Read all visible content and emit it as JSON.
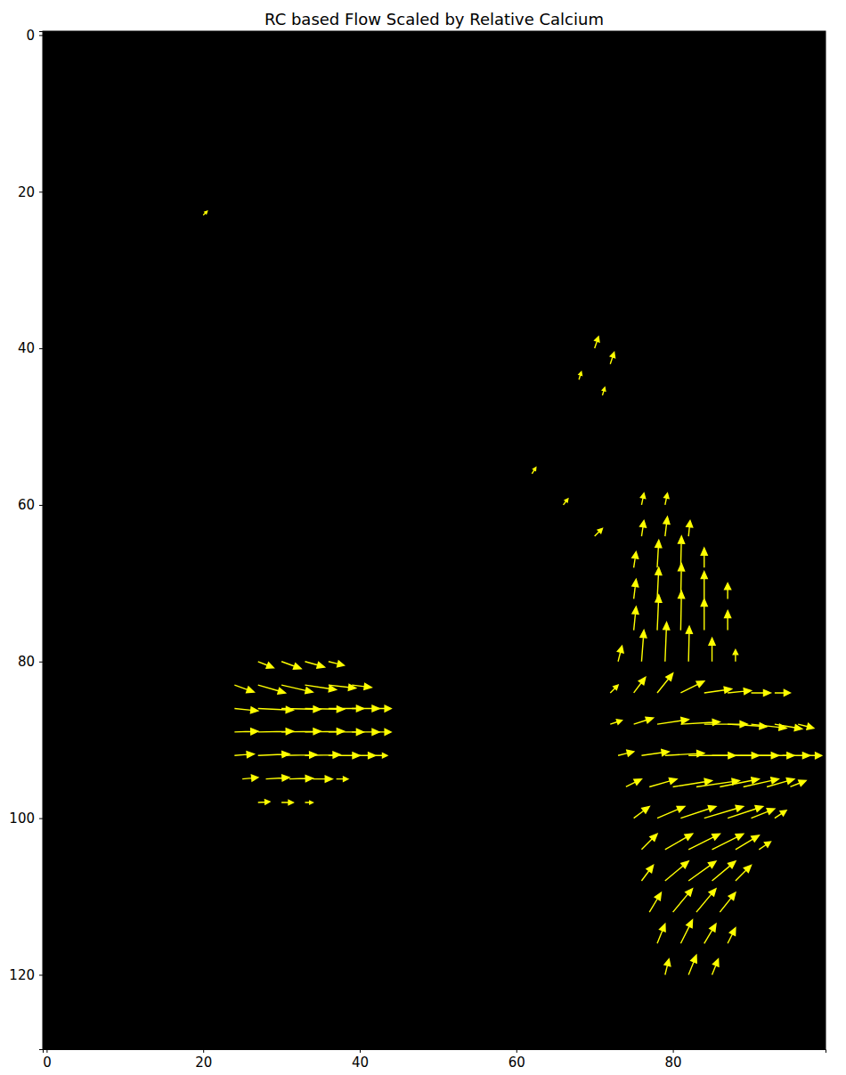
{
  "chart_data": {
    "type": "quiver",
    "title": "RC based Flow Scaled by Relative Calcium",
    "color": "#ffff00",
    "xlim": [
      -0.5,
      99.5
    ],
    "ylim": [
      129.5,
      -0.5
    ],
    "xticks": [
      0,
      20,
      40,
      60,
      80
    ],
    "yticks": [
      0,
      20,
      40,
      60,
      80,
      100,
      120
    ],
    "x": [
      27,
      30,
      33,
      36,
      24,
      27,
      30,
      33,
      36,
      39,
      24,
      27,
      30,
      33,
      36,
      39,
      42,
      24,
      27,
      30,
      33,
      36,
      39,
      42,
      24,
      27,
      30,
      33,
      36,
      39,
      42,
      25,
      28,
      31,
      34,
      37,
      27,
      30,
      33,
      76,
      79,
      76,
      79,
      82,
      75,
      78,
      81,
      84,
      75,
      78,
      81,
      84,
      87,
      75,
      78,
      81,
      84,
      87,
      73,
      76,
      79,
      82,
      85,
      88,
      72,
      75,
      78,
      81,
      84,
      87,
      90,
      93,
      72,
      75,
      78,
      81,
      84,
      87,
      90,
      93,
      96,
      73,
      76,
      79,
      82,
      85,
      88,
      91,
      94,
      97,
      74,
      77,
      80,
      83,
      86,
      89,
      92,
      95,
      75,
      78,
      81,
      84,
      87,
      90,
      93,
      76,
      79,
      82,
      85,
      88,
      91,
      76,
      79,
      82,
      85,
      88,
      77,
      80,
      83,
      86,
      78,
      81,
      84,
      87,
      79,
      82,
      85,
      70,
      72,
      68,
      71,
      62,
      66,
      70,
      20
    ],
    "y": [
      80,
      80,
      80,
      80,
      83,
      83,
      83,
      83,
      83,
      83,
      86,
      86,
      86,
      86,
      86,
      86,
      86,
      89,
      89,
      89,
      89,
      89,
      89,
      89,
      92,
      92,
      92,
      92,
      92,
      92,
      92,
      95,
      95,
      95,
      95,
      95,
      98,
      98,
      98,
      60,
      60,
      64,
      64,
      64,
      68,
      68,
      68,
      68,
      72,
      72,
      72,
      72,
      72,
      76,
      76,
      76,
      76,
      76,
      80,
      80,
      80,
      80,
      80,
      80,
      84,
      84,
      84,
      84,
      84,
      84,
      84,
      84,
      88,
      88,
      88,
      88,
      88,
      88,
      88,
      88,
      88,
      92,
      92,
      92,
      92,
      92,
      92,
      92,
      92,
      92,
      96,
      96,
      96,
      96,
      96,
      96,
      96,
      96,
      100,
      100,
      100,
      100,
      100,
      100,
      100,
      104,
      104,
      104,
      104,
      104,
      104,
      108,
      108,
      108,
      108,
      108,
      112,
      112,
      112,
      112,
      116,
      116,
      116,
      116,
      120,
      120,
      120,
      40,
      42,
      44,
      46,
      56,
      60,
      64,
      23
    ],
    "u": [
      2,
      2.5,
      2.5,
      2,
      2.5,
      3.5,
      4,
      4,
      3.5,
      2.5,
      3,
      4.5,
      5,
      5,
      4.5,
      3.5,
      2,
      3,
      4.5,
      5,
      5,
      4.5,
      3.5,
      2,
      2.5,
      4,
      4.5,
      4.5,
      4,
      3,
      1.5,
      2,
      3,
      3,
      2.5,
      1.5,
      1.5,
      1.5,
      1,
      0.3,
      0.3,
      0.3,
      0.3,
      0.2,
      0.3,
      0.2,
      0.1,
      0,
      0.3,
      0.2,
      0.1,
      0,
      0,
      0.3,
      0.2,
      0.1,
      0,
      0,
      0.5,
      0.3,
      0.2,
      0.1,
      0,
      0,
      1,
      1.5,
      2,
      3,
      3.5,
      3,
      2.5,
      2,
      1.5,
      2.5,
      4,
      5,
      5.5,
      5,
      4.5,
      3.5,
      2,
      2,
      3.5,
      5,
      6,
      6,
      5.5,
      4.5,
      3.5,
      2,
      2,
      3.5,
      5,
      5.5,
      5,
      4.5,
      3.5,
      2,
      2,
      3.5,
      4.5,
      5,
      4.5,
      3,
      1.5,
      2,
      3.5,
      4,
      4,
      3,
      1.5,
      1.5,
      3,
      3.5,
      3,
      2,
      1.5,
      2.5,
      2.5,
      2,
      1,
      1.5,
      1.5,
      1,
      0.5,
      1,
      0.8,
      0.5,
      0.5,
      0.3,
      0.3,
      0.5,
      0.6,
      1,
      0.5
    ],
    "v": [
      0.8,
      0.9,
      0.7,
      0.5,
      0.9,
      1,
      0.9,
      0.6,
      0.4,
      0.3,
      0.3,
      0.2,
      0.1,
      0.1,
      0,
      0,
      0,
      -0.1,
      -0.1,
      -0.1,
      -0.1,
      0,
      0,
      0,
      -0.2,
      -0.2,
      -0.1,
      -0.1,
      0,
      0,
      0,
      -0.2,
      -0.2,
      -0.1,
      0,
      0,
      -0.1,
      0,
      0,
      -1.5,
      -1.5,
      -2,
      -2.5,
      -2,
      -2,
      -3.5,
      -4,
      -2.5,
      -2.5,
      -4,
      -4.5,
      -3.5,
      -2,
      -3,
      -4.5,
      -5,
      -4,
      -2.5,
      -2,
      -4,
      -5,
      -4.5,
      -3,
      -1.5,
      -1,
      -2,
      -2.5,
      -1.5,
      -0.5,
      -0.3,
      0,
      0,
      -0.5,
      -0.8,
      -0.6,
      -0.3,
      0,
      0.3,
      0.5,
      0.6,
      0.5,
      -0.5,
      -0.5,
      -0.3,
      0,
      0,
      0,
      0,
      0,
      0,
      -1,
      -1,
      -0.8,
      -0.8,
      -1,
      -1,
      -1,
      -0.8,
      -1.5,
      -1.5,
      -1.5,
      -1.5,
      -1.5,
      -1.2,
      -1,
      -2,
      -2,
      -2,
      -2,
      -1.8,
      -1,
      -2,
      -2.5,
      -2.5,
      -2.5,
      -2,
      -2.5,
      -3,
      -3,
      -2.5,
      -2.5,
      -3,
      -2.5,
      -2,
      -2,
      -2.5,
      -2,
      -1.5,
      -1.5,
      -1,
      -1,
      -0.8,
      -0.8,
      -1,
      -0.5
    ]
  }
}
